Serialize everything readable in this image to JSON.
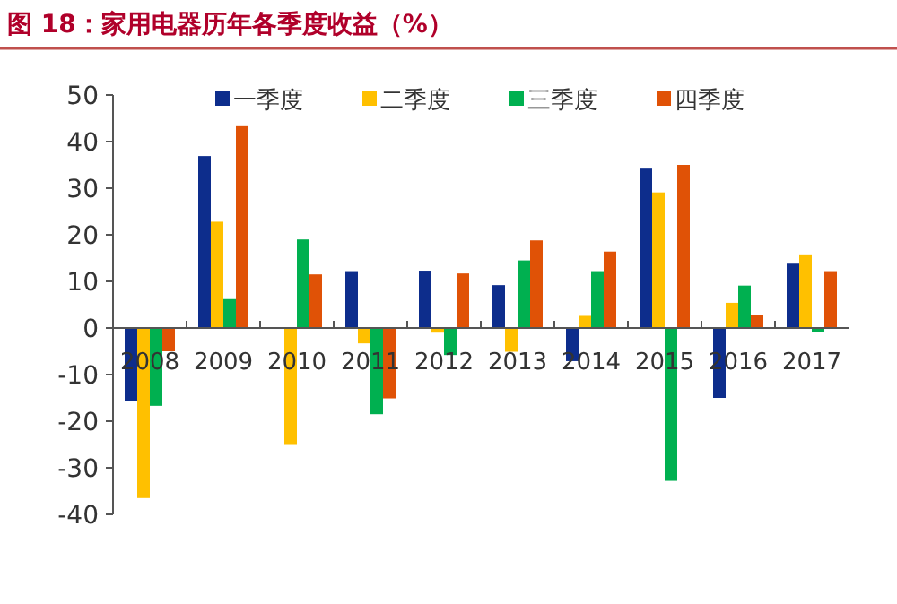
{
  "chart_data": {
    "type": "bar",
    "title": "图 18：家用电器历年各季度收益（%）",
    "categories": [
      "2008",
      "2009",
      "2010",
      "2011",
      "2012",
      "2013",
      "2014",
      "2015",
      "2016",
      "2017"
    ],
    "series": [
      {
        "name": "一季度",
        "color": "#0d2d8c",
        "values": [
          -15.6,
          36.9,
          null,
          12.2,
          12.3,
          9.2,
          -7.1,
          34.2,
          -15,
          13.8
        ]
      },
      {
        "name": "二季度",
        "color": "#ffc000",
        "values": [
          -36.5,
          22.8,
          -25.1,
          -3.3,
          -1,
          -5.1,
          2.6,
          29.1,
          5.4,
          15.8
        ]
      },
      {
        "name": "三季度",
        "color": "#00b050",
        "values": [
          -16.7,
          6.2,
          19,
          -18.5,
          -5.8,
          14.5,
          12.2,
          -32.8,
          9.1,
          -0.9
        ]
      },
      {
        "name": "四季度",
        "color": "#e05206",
        "values": [
          -5,
          43.3,
          11.5,
          -15.1,
          11.7,
          18.8,
          16.4,
          35,
          2.8,
          12.2
        ]
      }
    ],
    "ylim": [
      -40,
      50
    ],
    "yticks": [
      -40,
      -30,
      -20,
      -10,
      0,
      10,
      20,
      30,
      40,
      50
    ],
    "legend": "top",
    "grid": false
  }
}
